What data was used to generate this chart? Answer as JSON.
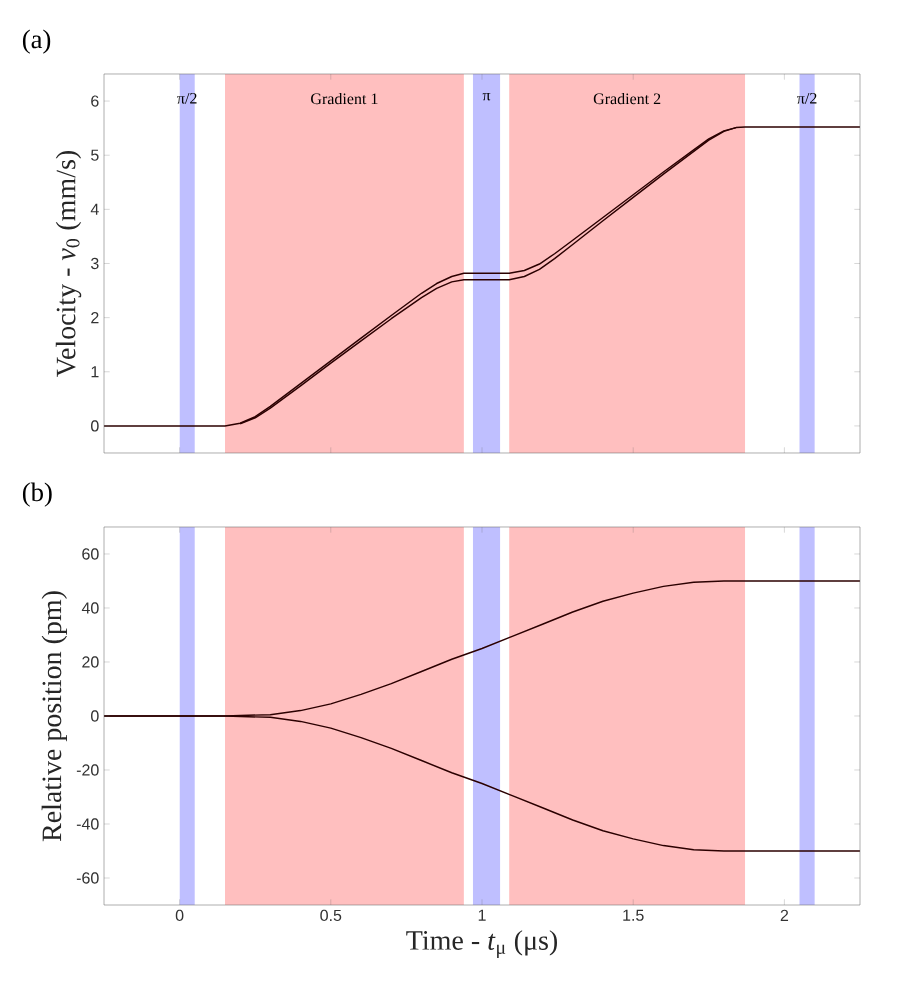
{
  "chart_data": [
    {
      "type": "line",
      "title": "(a)",
      "ylabel": "Velocity - *v*$_{0}$  (mm/s)",
      "xlim": [
        -0.25,
        2.25
      ],
      "ylim": [
        -0.5,
        6.5
      ],
      "xticks": [
        0,
        0.5,
        1,
        1.5,
        2
      ],
      "yticks": [
        0,
        1,
        2,
        3,
        4,
        5,
        6
      ],
      "tick_labels": "y",
      "bands": [
        {
          "axis": "x",
          "from": 0,
          "to": 0.05,
          "color": "#bfbfff",
          "label": "π/2"
        },
        {
          "axis": "x",
          "from": 0.15,
          "to": 0.94,
          "color": "#ffbfbf",
          "label": "Gradient 1"
        },
        {
          "axis": "x",
          "from": 0.97,
          "to": 1.06,
          "color": "#bfbfff",
          "label": "π"
        },
        {
          "axis": "x",
          "from": 1.09,
          "to": 1.87,
          "color": "#ffbfbf",
          "label": "Gradient 2"
        },
        {
          "axis": "x",
          "from": 2.05,
          "to": 2.1,
          "color": "#bfbfff",
          "label": "π/2"
        }
      ],
      "series": [
        {
          "color": "#2b0000",
          "x": [
            -0.25,
            0.15,
            0.2,
            0.25,
            0.3,
            0.4,
            0.5,
            0.6,
            0.7,
            0.8,
            0.85,
            0.9,
            0.94,
            1.09,
            1.14,
            1.19,
            1.24,
            1.3,
            1.4,
            1.5,
            1.6,
            1.7,
            1.75,
            1.8,
            1.84,
            1.87,
            2.25
          ],
          "values": [
            0,
            0,
            0.05,
            0.17,
            0.36,
            0.78,
            1.2,
            1.62,
            2.04,
            2.45,
            2.63,
            2.76,
            2.82,
            2.82,
            2.87,
            2.99,
            3.18,
            3.43,
            3.85,
            4.27,
            4.69,
            5.1,
            5.3,
            5.45,
            5.51,
            5.52,
            5.52
          ]
        },
        {
          "color": "#2b0000",
          "x": [
            0.2,
            0.25,
            0.3,
            0.4,
            0.5,
            0.6,
            0.7,
            0.8,
            0.85,
            0.9,
            0.94,
            1.09,
            1.14,
            1.19,
            1.24,
            1.3,
            1.4,
            1.5,
            1.6,
            1.7,
            1.75,
            1.8,
            1.84
          ],
          "values": [
            0.04,
            0.15,
            0.33,
            0.74,
            1.16,
            1.57,
            1.98,
            2.37,
            2.54,
            2.66,
            2.7,
            2.7,
            2.76,
            2.89,
            3.09,
            3.35,
            3.79,
            4.22,
            4.65,
            5.07,
            5.28,
            5.44,
            5.51
          ]
        }
      ]
    },
    {
      "type": "line",
      "title": "(b)",
      "xlabel": "Time - *t*$_{μ}$ (μs)",
      "ylabel": "Relative position (pm)",
      "xlim": [
        -0.25,
        2.25
      ],
      "ylim": [
        -70,
        70
      ],
      "xticks": [
        0,
        0.5,
        1,
        1.5,
        2
      ],
      "yticks": [
        -60,
        -40,
        -20,
        0,
        20,
        40,
        60
      ],
      "bands": [
        {
          "axis": "x",
          "from": 0,
          "to": 0.05,
          "color": "#bfbfff"
        },
        {
          "axis": "x",
          "from": 0.15,
          "to": 0.94,
          "color": "#ffbfbf"
        },
        {
          "axis": "x",
          "from": 0.97,
          "to": 1.06,
          "color": "#bfbfff"
        },
        {
          "axis": "x",
          "from": 1.09,
          "to": 1.87,
          "color": "#ffbfbf"
        },
        {
          "axis": "x",
          "from": 2.05,
          "to": 2.1,
          "color": "#bfbfff"
        }
      ],
      "series": [
        {
          "color": "#2b0000",
          "x": [
            -0.25,
            0.15,
            0.3,
            0.4,
            0.5,
            0.6,
            0.7,
            0.8,
            0.9,
            1.0,
            1.1,
            1.2,
            1.3,
            1.4,
            1.5,
            1.6,
            1.7,
            1.8,
            1.87,
            2.25
          ],
          "values": [
            0,
            0,
            0.5,
            2,
            4.5,
            8,
            12,
            16.5,
            21,
            25,
            29.5,
            34,
            38.5,
            42.5,
            45.5,
            48,
            49.5,
            50,
            50,
            50
          ]
        },
        {
          "color": "#2b0000",
          "x": [
            -0.25,
            0.15,
            0.3,
            0.4,
            0.5,
            0.6,
            0.7,
            0.8,
            0.9,
            1.0,
            1.1,
            1.2,
            1.3,
            1.4,
            1.5,
            1.6,
            1.7,
            1.8,
            1.87,
            2.25
          ],
          "values": [
            0,
            0,
            -0.5,
            -2,
            -4.5,
            -8,
            -12,
            -16.5,
            -21,
            -25,
            -29.5,
            -34,
            -38.5,
            -42.5,
            -45.5,
            -48,
            -49.5,
            -50,
            -50,
            -50
          ]
        }
      ]
    }
  ]
}
